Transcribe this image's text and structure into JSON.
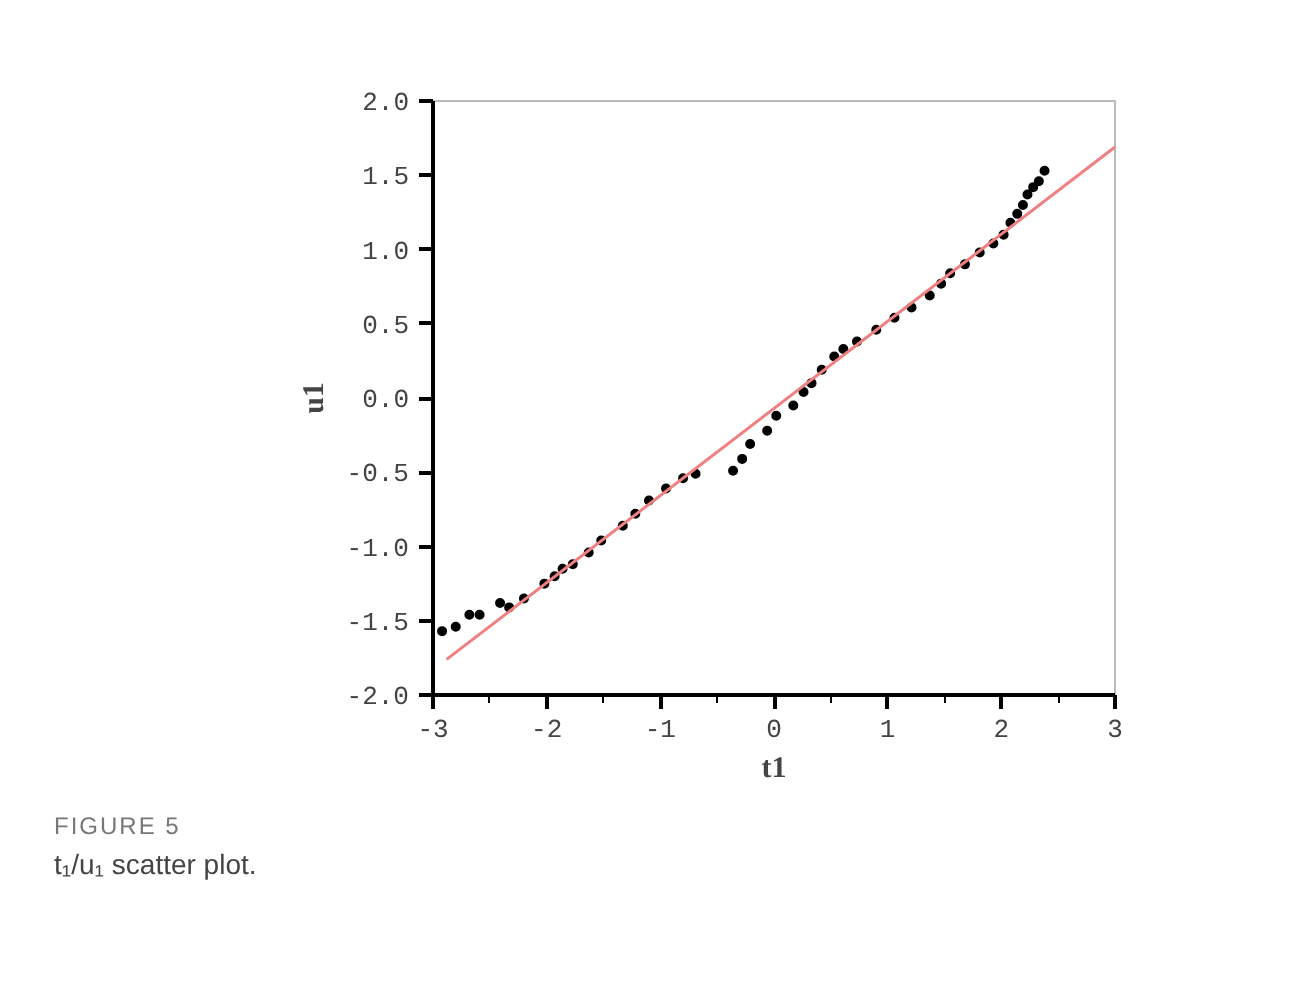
{
  "chart_data": {
    "type": "scatter",
    "xlabel": "t1",
    "ylabel": "u1",
    "xlim": [
      -3,
      3
    ],
    "ylim": [
      -2,
      2
    ],
    "xticks": [
      -3,
      {
        "value": -2.5,
        "label": null
      },
      -2,
      {
        "value": -1.5,
        "label": null
      },
      -1,
      {
        "value": -0.5,
        "label": null
      },
      0,
      {
        "value": 0.5,
        "label": null
      },
      1,
      {
        "value": 1.5,
        "label": null
      },
      2,
      {
        "value": 2.5,
        "label": null
      },
      3
    ],
    "yticks": [
      {
        "value": -2,
        "label": "-2.0"
      },
      {
        "value": -1.5,
        "label": "-1.5"
      },
      {
        "value": -1,
        "label": "-1.0"
      },
      {
        "value": -0.5,
        "label": "-0.5"
      },
      {
        "value": 0,
        "label": "0.0"
      },
      {
        "value": 0.5,
        "label": "0.5"
      },
      {
        "value": 1,
        "label": "1.0"
      },
      {
        "value": 1.5,
        "label": "1.5"
      },
      {
        "value": 2,
        "label": "2.0"
      }
    ],
    "grid": false,
    "marker": "circle",
    "series": [
      {
        "color": "#000000",
        "x": [
          -2.92,
          -2.8,
          -2.68,
          -2.59,
          -2.41,
          -2.33,
          -2.2,
          -2.02,
          -1.93,
          -1.86,
          -1.77,
          -1.63,
          -1.52,
          -1.33,
          -1.22,
          -1.1,
          -0.95,
          -0.8,
          -0.69,
          -0.36,
          -0.28,
          -0.21,
          -0.06,
          0.02,
          0.17,
          0.26,
          0.33,
          0.42,
          0.53,
          0.61,
          0.73,
          0.9,
          1.06,
          1.21,
          1.37,
          1.47,
          1.55,
          1.68,
          1.81,
          1.93,
          2.02,
          2.08,
          2.14,
          2.19,
          2.23,
          2.28,
          2.33,
          2.38
        ],
        "values": [
          -1.57,
          -1.54,
          -1.46,
          -1.46,
          -1.38,
          -1.41,
          -1.35,
          -1.25,
          -1.2,
          -1.15,
          -1.12,
          -1.04,
          -0.96,
          -0.86,
          -0.78,
          -0.69,
          -0.61,
          -0.54,
          -0.51,
          -0.49,
          -0.41,
          -0.31,
          -0.22,
          -0.12,
          -0.05,
          0.04,
          0.1,
          0.19,
          0.28,
          0.33,
          0.38,
          0.46,
          0.54,
          0.61,
          0.69,
          0.77,
          0.84,
          0.9,
          0.98,
          1.04,
          1.1,
          1.18,
          1.24,
          1.3,
          1.37,
          1.42,
          1.46,
          1.53
        ]
      },
      {
        "type": "line",
        "marker": "none",
        "color": "#f08080",
        "x": [
          -2.88,
          3
        ],
        "values": [
          -1.76,
          1.69
        ]
      }
    ],
    "annotations": [
      "FIGURE 5",
      "t₁/u₁ scatter plot."
    ]
  }
}
